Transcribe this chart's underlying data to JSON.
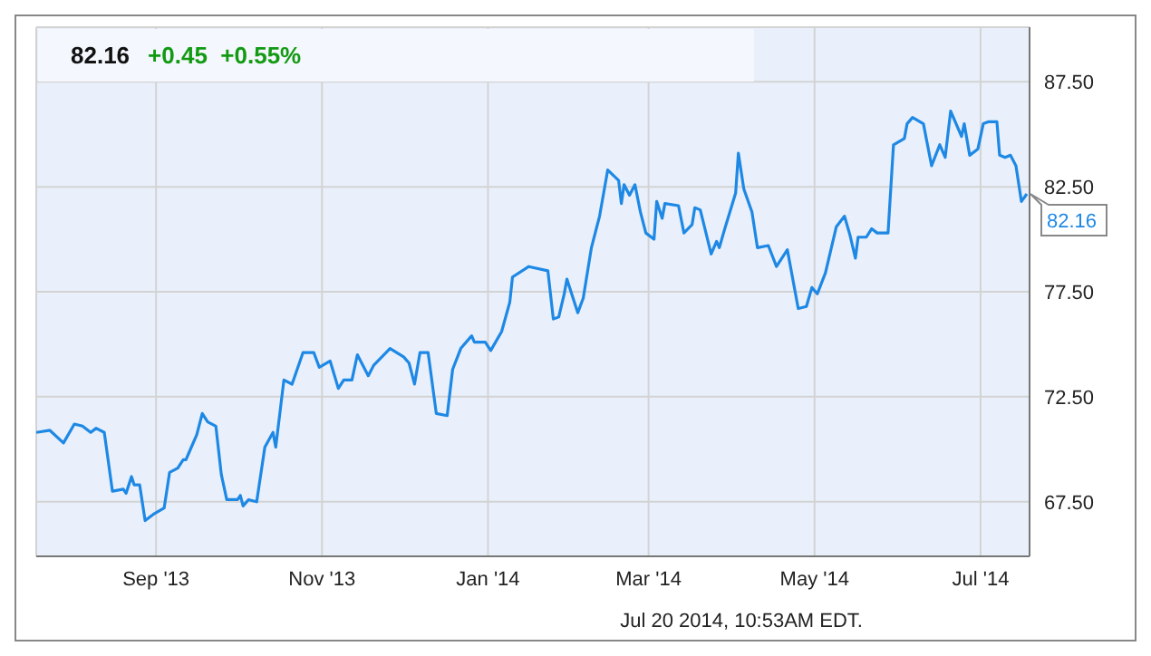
{
  "chart_data": {
    "type": "line",
    "title": "82.16",
    "subtitle": "+0.45  +0.55%",
    "x": [
      "2013-07-19",
      "2013-07-24",
      "2013-07-29",
      "2013-08-02",
      "2013-08-05",
      "2013-08-08",
      "2013-08-10",
      "2013-08-13",
      "2013-08-16",
      "2013-08-20",
      "2013-08-21",
      "2013-08-23",
      "2013-08-24",
      "2013-08-26",
      "2013-08-28",
      "2013-08-31",
      "2013-09-04",
      "2013-09-06",
      "2013-09-09",
      "2013-09-11",
      "2013-09-12",
      "2013-09-14",
      "2013-09-16",
      "2013-09-18",
      "2013-09-20",
      "2013-09-23",
      "2013-09-25",
      "2013-09-27",
      "2013-10-01",
      "2013-10-02",
      "2013-10-03",
      "2013-10-05",
      "2013-10-08",
      "2013-10-11",
      "2013-10-14",
      "2013-10-15",
      "2013-10-18",
      "2013-10-21",
      "2013-10-25",
      "2013-10-29",
      "2013-10-31",
      "2013-11-04",
      "2013-11-07",
      "2013-11-09",
      "2013-11-12",
      "2013-11-14",
      "2013-11-18",
      "2013-11-20",
      "2013-11-26",
      "2013-12-01",
      "2013-12-03",
      "2013-12-05",
      "2013-12-07",
      "2013-12-10",
      "2013-12-13",
      "2013-12-17",
      "2013-12-19",
      "2013-12-22",
      "2013-12-26",
      "2013-12-27",
      "2013-12-31",
      "2014-01-02",
      "2014-01-06",
      "2014-01-09",
      "2014-01-10",
      "2014-01-16",
      "2014-01-23",
      "2014-01-25",
      "2014-01-27",
      "2014-01-29",
      "2014-01-30",
      "2014-02-03",
      "2014-02-05",
      "2014-02-08",
      "2014-02-11",
      "2014-02-14",
      "2014-02-18",
      "2014-02-19",
      "2014-02-20",
      "2014-02-22",
      "2014-02-24",
      "2014-02-26",
      "2014-02-28",
      "2014-03-03",
      "2014-03-04",
      "2014-03-06",
      "2014-03-07",
      "2014-03-12",
      "2014-03-14",
      "2014-03-17",
      "2014-03-18",
      "2014-03-20",
      "2014-03-24",
      "2014-03-26",
      "2014-03-27",
      "2014-03-29",
      "2014-04-02",
      "2014-04-03",
      "2014-04-05",
      "2014-04-08",
      "2014-04-10",
      "2014-04-14",
      "2014-04-17",
      "2014-04-21",
      "2014-04-25",
      "2014-04-28",
      "2014-04-30",
      "2014-05-02",
      "2014-05-05",
      "2014-05-09",
      "2014-05-12",
      "2014-05-14",
      "2014-05-16",
      "2014-05-17",
      "2014-05-20",
      "2014-05-22",
      "2014-05-24",
      "2014-05-28",
      "2014-05-30",
      "2014-06-03",
      "2014-06-04",
      "2014-06-06",
      "2014-06-10",
      "2014-06-13",
      "2014-06-16",
      "2014-06-18",
      "2014-06-20",
      "2014-06-24",
      "2014-06-25",
      "2014-06-27",
      "2014-06-30",
      "2014-07-02",
      "2014-07-04",
      "2014-07-07",
      "2014-07-08",
      "2014-07-10",
      "2014-07-12",
      "2014-07-14",
      "2014-07-16",
      "2014-07-18"
    ],
    "series": [
      {
        "color": "#1e88e5",
        "values": [
          70.8,
          70.9,
          70.3,
          71.2,
          71.1,
          70.8,
          71.0,
          70.8,
          68.0,
          68.1,
          67.9,
          68.7,
          68.3,
          68.3,
          66.6,
          66.9,
          67.2,
          68.9,
          69.1,
          69.5,
          69.5,
          70.1,
          70.7,
          71.7,
          71.3,
          71.1,
          68.8,
          67.6,
          67.6,
          67.8,
          67.3,
          67.6,
          67.5,
          70.1,
          70.8,
          70.1,
          73.3,
          73.1,
          74.6,
          74.6,
          73.9,
          74.2,
          72.9,
          73.3,
          73.3,
          74.5,
          73.5,
          74.0,
          74.8,
          74.4,
          74.1,
          73.1,
          74.6,
          74.6,
          71.7,
          71.6,
          73.8,
          74.8,
          75.4,
          75.1,
          75.1,
          74.7,
          75.6,
          77.0,
          78.2,
          78.7,
          78.5,
          76.2,
          76.3,
          77.4,
          78.1,
          76.5,
          77.2,
          79.6,
          81.1,
          83.3,
          82.8,
          81.7,
          82.6,
          82.1,
          82.6,
          81.3,
          80.3,
          80.0,
          81.8,
          81.0,
          81.7,
          81.6,
          80.3,
          80.7,
          81.5,
          81.4,
          79.3,
          79.9,
          79.6,
          80.5,
          82.2,
          84.1,
          82.4,
          81.3,
          79.6,
          79.7,
          78.7,
          79.5,
          76.7,
          76.8,
          77.7,
          77.4,
          78.4,
          80.6,
          81.1,
          80.2,
          79.1,
          80.1,
          80.1,
          80.5,
          80.3,
          80.3,
          84.5,
          84.8,
          85.5,
          85.8,
          85.5,
          83.5,
          84.5,
          83.9,
          86.1,
          84.9,
          85.5,
          84.0,
          84.3,
          85.5,
          85.6,
          85.6,
          84.0,
          83.9,
          84.0,
          83.5,
          81.8,
          82.16
        ]
      }
    ],
    "xlim": [
      "2013-07-19",
      "2014-07-19"
    ],
    "xticks": [
      {
        "value": "2013-09-01",
        "label": "Sep '13"
      },
      {
        "value": "2013-11-01",
        "label": "Nov '13"
      },
      {
        "value": "2014-01-01",
        "label": "Jan '14"
      },
      {
        "value": "2014-03-01",
        "label": "Mar '14"
      },
      {
        "value": "2014-05-01",
        "label": "May '14"
      },
      {
        "value": "2014-07-01",
        "label": "Jul '14"
      }
    ],
    "ylim": [
      64.9,
      90.1
    ],
    "yticks": [
      {
        "value": 67.5,
        "label": "67.50"
      },
      {
        "value": 72.5,
        "label": "72.50"
      },
      {
        "value": 77.5,
        "label": "77.50"
      },
      {
        "value": 82.5,
        "label": "82.50"
      },
      {
        "value": 87.5,
        "label": "87.50"
      }
    ],
    "grid": true,
    "annotations": [
      {
        "text": "82.16",
        "x": "2014-07-18",
        "y": 82.16
      },
      "Jul 20 2014, 10:53AM EDT."
    ]
  }
}
